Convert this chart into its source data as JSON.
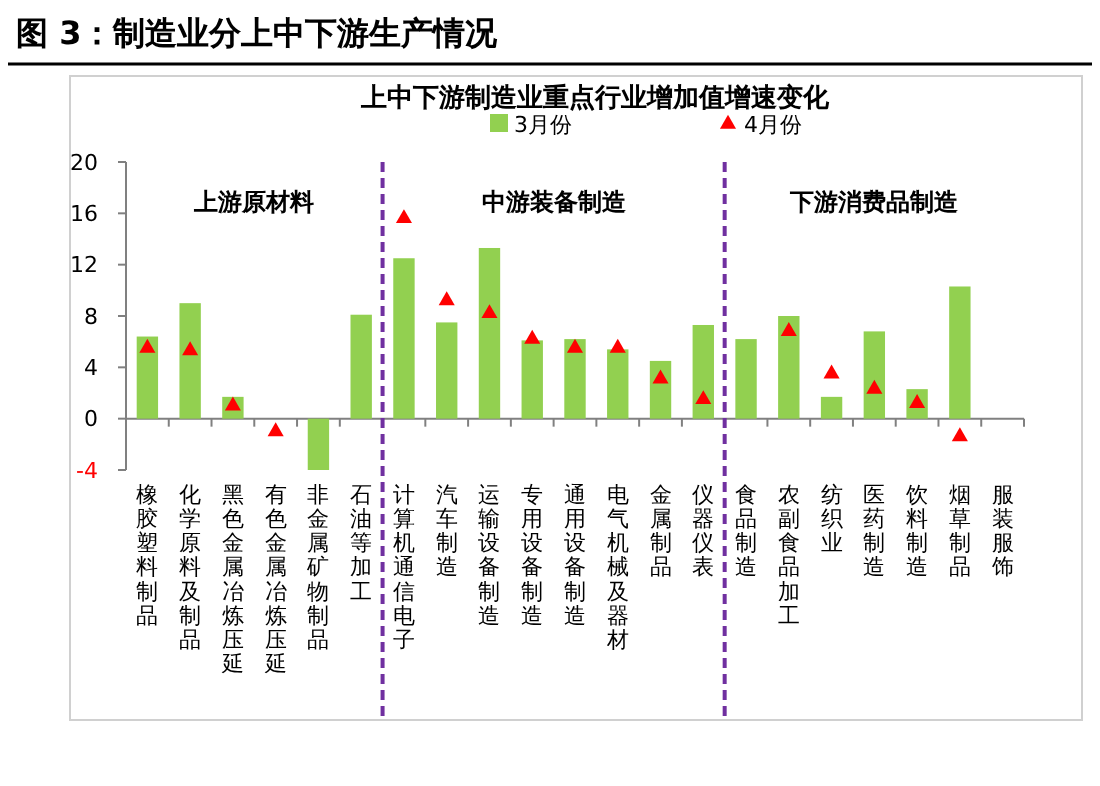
{
  "chart_data": {
    "type": "bar",
    "title": "图 3：制造业分上中下游生产情况",
    "subtitle": "上中下游制造业重点行业增加值增速变化",
    "categories": [
      "橡胶塑料制品",
      "化学原料及制品",
      "黑色金属冶炼压延",
      "有色金属冶炼压延",
      "非金属矿物制品",
      "石油等加工",
      "计算机通信电子",
      "汽车制造",
      "运输设备制造",
      "专用设备制造",
      "通用设备制造",
      "电气机械及器材",
      "金属制品",
      "仪器仪表",
      "食品制造",
      "农副食品加工",
      "纺织业",
      "医药制造",
      "饮料制造",
      "烟草制品",
      "服装服饰"
    ],
    "series": [
      {
        "name": "3月份",
        "color": "#92d050",
        "values": [
          6.4,
          9.0,
          1.7,
          null,
          -4.0,
          8.1,
          12.5,
          7.5,
          13.3,
          6.1,
          6.2,
          5.4,
          4.5,
          7.3,
          6.2,
          8.0,
          1.7,
          6.8,
          2.3,
          10.3,
          null
        ]
      },
      {
        "name": "4月份",
        "type": "scatter",
        "marker": "triangle",
        "color": "#ff0000",
        "values": [
          5.5,
          5.3,
          1.0,
          -1.0,
          null,
          null,
          15.6,
          9.2,
          8.2,
          6.2,
          5.5,
          5.5,
          3.1,
          1.5,
          null,
          6.8,
          3.5,
          2.3,
          1.2,
          -1.4,
          null
        ]
      }
    ],
    "ylim": [
      -4,
      20
    ],
    "yticks": [
      {
        "value": -4,
        "label": "-4"
      },
      0,
      4,
      8,
      12,
      16,
      20
    ],
    "annotations": [
      "上游原材料",
      "中游装备制造",
      "下游消费品制造"
    ],
    "legend": "top",
    "grid": false
  }
}
